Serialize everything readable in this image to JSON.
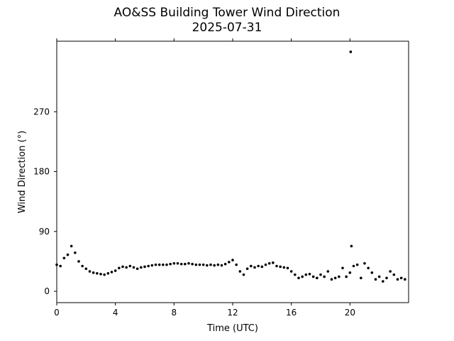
{
  "chart_data": {
    "type": "scatter",
    "title": "AO&SS Building Tower Wind Direction",
    "subtitle": "2025-07-31",
    "xlabel": "Time (UTC)",
    "ylabel": "Wind Direction (°)",
    "xlim": [
      0,
      24
    ],
    "ylim": [
      -17,
      376
    ],
    "xticks": [
      0,
      4,
      8,
      12,
      16,
      20
    ],
    "yticks": [
      0,
      90,
      180,
      270
    ],
    "grid": false,
    "marker_color": "#000000",
    "series": [
      {
        "x": [
          0.0,
          0.25,
          0.5,
          0.75,
          1.0,
          1.25,
          1.5,
          1.75,
          2.0,
          2.25,
          2.5,
          2.75,
          3.0,
          3.25,
          3.5,
          3.75,
          4.0,
          4.25,
          4.5,
          4.75,
          5.0,
          5.25,
          5.5,
          5.75,
          6.0,
          6.25,
          6.5,
          6.75,
          7.0,
          7.25,
          7.5,
          7.75,
          8.0,
          8.25,
          8.5,
          8.75,
          9.0,
          9.25,
          9.5,
          9.75,
          10.0,
          10.25,
          10.5,
          10.75,
          11.0,
          11.25,
          11.5,
          11.75,
          12.0,
          12.25,
          12.5,
          12.75,
          13.0,
          13.25,
          13.5,
          13.75,
          14.0,
          14.25,
          14.5,
          14.75,
          15.0,
          15.25,
          15.5,
          15.75,
          16.0,
          16.25,
          16.5,
          16.75,
          17.0,
          17.25,
          17.5,
          17.75,
          18.0,
          18.25,
          18.5,
          18.75,
          19.0,
          19.25,
          19.5,
          19.75,
          20.0,
          20.25,
          20.5,
          20.75,
          21.0,
          21.25,
          21.5,
          21.75,
          22.0,
          22.25,
          22.5,
          22.75,
          23.0,
          23.25,
          23.5,
          23.75,
          20.05,
          20.1
        ],
        "y": [
          40,
          38,
          50,
          55,
          68,
          58,
          45,
          38,
          34,
          30,
          28,
          27,
          26,
          25,
          27,
          29,
          31,
          35,
          37,
          36,
          38,
          36,
          34,
          36,
          37,
          38,
          39,
          40,
          40,
          40,
          40,
          41,
          42,
          42,
          41,
          41,
          42,
          41,
          40,
          40,
          40,
          39,
          40,
          39,
          40,
          39,
          41,
          44,
          47,
          40,
          30,
          25,
          34,
          38,
          36,
          38,
          37,
          40,
          42,
          43,
          38,
          37,
          36,
          35,
          30,
          25,
          20,
          22,
          25,
          26,
          22,
          20,
          25,
          22,
          30,
          18,
          20,
          22,
          35,
          22,
          28,
          38,
          40,
          20,
          42,
          35,
          28,
          18,
          22,
          15,
          20,
          30,
          25,
          18,
          20,
          18,
          360,
          68
        ]
      }
    ]
  }
}
